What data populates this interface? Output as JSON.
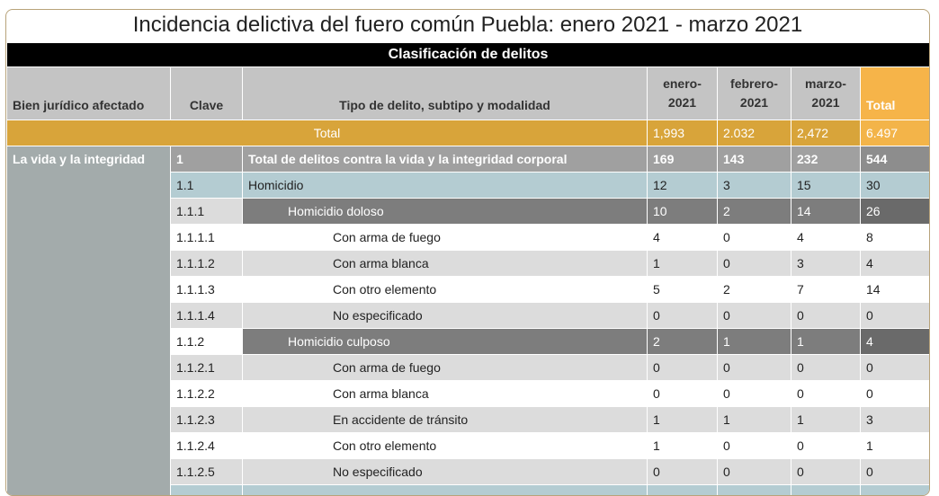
{
  "title": "Incidencia delictiva del fuero común Puebla: enero 2021 - marzo 2021",
  "band": "Clasificación de delitos",
  "headers": {
    "bien": "Bien jurídico afectado",
    "clave": "Clave",
    "tipo": "Tipo de delito, subtipo y modalidad",
    "m1a": "enero-",
    "m1b": "2021",
    "m2a": "febrero-",
    "m2b": "2021",
    "m3a": "marzo-",
    "m3b": "2021",
    "total": "Total"
  },
  "total_row": {
    "label": "Total",
    "v": [
      "1,993",
      "2.032",
      "2,472",
      "6.497"
    ]
  },
  "bien_label": "La vida y la integridad",
  "rows": [
    {
      "clave": "1",
      "tipo": "Total de delitos contra la vida y la integridad corporal",
      "v": [
        "169",
        "143",
        "232",
        "544"
      ]
    },
    {
      "clave": "1.1",
      "tipo": "Homicidio",
      "v": [
        "12",
        "3",
        "15",
        "30"
      ]
    },
    {
      "clave": "1.1.1",
      "tipo": "Homicidio doloso",
      "v": [
        "10",
        "2",
        "14",
        "26"
      ]
    },
    {
      "clave": "1.1.1.1",
      "tipo": "Con arma de fuego",
      "v": [
        "4",
        "0",
        "4",
        "8"
      ]
    },
    {
      "clave": "1.1.1.2",
      "tipo": "Con arma blanca",
      "v": [
        "1",
        "0",
        "3",
        "4"
      ]
    },
    {
      "clave": "1.1.1.3",
      "tipo": "Con otro elemento",
      "v": [
        "5",
        "2",
        "7",
        "14"
      ]
    },
    {
      "clave": "1.1.1.4",
      "tipo": "No especificado",
      "v": [
        "0",
        "0",
        "0",
        "0"
      ]
    },
    {
      "clave": "1.1.2",
      "tipo": "Homicidio culposo",
      "v": [
        "2",
        "1",
        "1",
        "4"
      ]
    },
    {
      "clave": "1.1.2.1",
      "tipo": "Con arma de fuego",
      "v": [
        "0",
        "0",
        "0",
        "0"
      ]
    },
    {
      "clave": "1.1.2.2",
      "tipo": "Con arma blanca",
      "v": [
        "0",
        "0",
        "0",
        "0"
      ]
    },
    {
      "clave": "1.1.2.3",
      "tipo": "En accidente de tránsito",
      "v": [
        "1",
        "1",
        "1",
        "3"
      ]
    },
    {
      "clave": "1.1.2.4",
      "tipo": "Con otro elemento",
      "v": [
        "1",
        "0",
        "0",
        "1"
      ]
    },
    {
      "clave": "1.1.2.5",
      "tipo": "No especificado",
      "v": [
        "0",
        "0",
        "0",
        "0"
      ]
    }
  ]
}
